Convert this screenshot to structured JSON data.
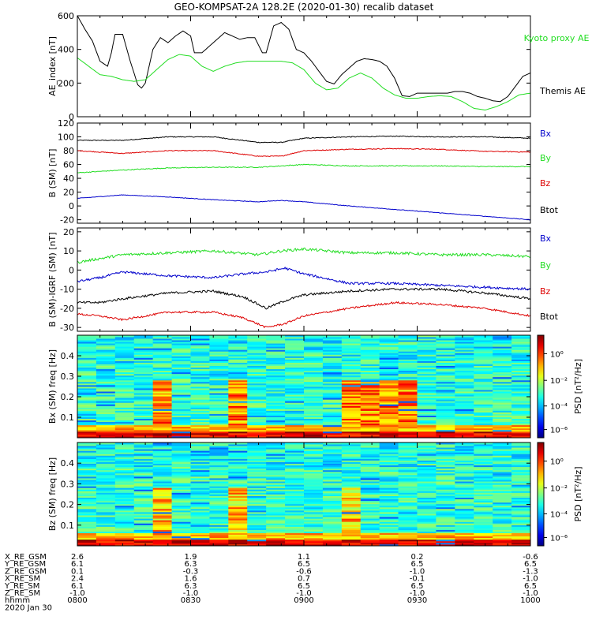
{
  "title": "GEO-KOMPSAT-2A 128.2E (2020-01-30) recalib dataset",
  "colors": {
    "kyoto": "#22dd22",
    "themis": "#000000",
    "bx": "#0000cc",
    "by": "#22dd22",
    "bz": "#dd0000",
    "btot": "#000000"
  },
  "chart_data": [
    {
      "type": "line",
      "ylabel": "AE_index [nT]",
      "ylim": [
        0,
        600
      ],
      "yticks": [
        "0",
        "200",
        "400",
        "600"
      ],
      "legend": [
        "Kyoto proxy AE",
        "Themis AE"
      ],
      "series": [
        {
          "name": "Themis AE",
          "color": "#000000",
          "x": [
            0,
            2,
            4,
            6,
            8,
            9,
            10,
            12,
            14,
            16,
            17,
            18,
            19,
            20,
            22,
            24,
            26,
            28,
            30,
            31,
            33,
            35,
            37,
            39,
            41,
            43,
            45,
            47,
            49,
            50,
            52,
            54,
            56,
            58,
            60,
            62,
            64,
            66,
            68,
            70,
            72,
            74,
            76,
            78,
            80,
            82,
            84,
            86,
            88,
            90,
            92,
            94,
            96,
            98,
            100,
            102,
            104,
            106,
            108,
            110,
            112,
            114,
            116,
            118,
            120
          ],
          "y": [
            600,
            520,
            450,
            330,
            300,
            380,
            490,
            490,
            330,
            190,
            170,
            200,
            300,
            400,
            470,
            440,
            480,
            510,
            480,
            380,
            380,
            420,
            460,
            500,
            480,
            460,
            470,
            470,
            380,
            380,
            540,
            560,
            520,
            400,
            380,
            330,
            270,
            210,
            195,
            250,
            290,
            330,
            345,
            340,
            330,
            300,
            230,
            125,
            120,
            140,
            140,
            140,
            140,
            140,
            150,
            150,
            140,
            120,
            110,
            95,
            90,
            120,
            180,
            240,
            260
          ]
        },
        {
          "name": "Kyoto proxy AE",
          "color": "#22dd22",
          "x": [
            0,
            3,
            6,
            9,
            12,
            15,
            18,
            21,
            24,
            27,
            30,
            33,
            36,
            39,
            42,
            45,
            48,
            51,
            54,
            57,
            60,
            63,
            66,
            69,
            72,
            75,
            78,
            81,
            84,
            87,
            90,
            93,
            96,
            99,
            102,
            105,
            108,
            111,
            114,
            117,
            120
          ],
          "y": [
            350,
            300,
            250,
            240,
            220,
            210,
            220,
            280,
            340,
            370,
            360,
            300,
            270,
            300,
            320,
            330,
            330,
            330,
            330,
            320,
            280,
            200,
            160,
            170,
            230,
            260,
            230,
            170,
            130,
            110,
            110,
            120,
            125,
            120,
            90,
            50,
            40,
            60,
            90,
            130,
            140
          ]
        }
      ]
    },
    {
      "type": "line",
      "ylabel": "B (SM) [nT]",
      "ylim": [
        -25,
        120
      ],
      "yticks": [
        "-20",
        "0",
        "20",
        "40",
        "60",
        "80",
        "100",
        "120"
      ],
      "legend": [
        "Bx",
        "By",
        "Bz",
        "Btot"
      ],
      "series": [
        {
          "name": "Btot",
          "color": "#000000",
          "x": [
            0,
            12,
            24,
            36,
            48,
            54,
            60,
            72,
            84,
            96,
            108,
            120
          ],
          "y": [
            95,
            95,
            100,
            100,
            92,
            92,
            98,
            100,
            101,
            100,
            100,
            98
          ]
        },
        {
          "name": "Bz",
          "color": "#dd0000",
          "x": [
            0,
            12,
            24,
            36,
            48,
            54,
            60,
            72,
            84,
            96,
            108,
            120
          ],
          "y": [
            80,
            76,
            80,
            80,
            72,
            72,
            80,
            82,
            83,
            82,
            79,
            78
          ]
        },
        {
          "name": "By",
          "color": "#22dd22",
          "x": [
            0,
            12,
            24,
            36,
            48,
            54,
            60,
            72,
            84,
            96,
            108,
            120
          ],
          "y": [
            48,
            52,
            55,
            56,
            56,
            58,
            60,
            58,
            58,
            58,
            57,
            57
          ]
        },
        {
          "name": "Bx",
          "color": "#0000cc",
          "x": [
            0,
            12,
            24,
            36,
            48,
            54,
            60,
            72,
            84,
            96,
            108,
            120
          ],
          "y": [
            11,
            16,
            13,
            9,
            6,
            8,
            6,
            0,
            -5,
            -10,
            -15,
            -20
          ]
        }
      ]
    },
    {
      "type": "line",
      "ylabel": "B (SM)-IGRF (SM) [nT]",
      "ylim": [
        -32,
        22
      ],
      "yticks": [
        "-30",
        "-20",
        "-10",
        "0",
        "10",
        "20"
      ],
      "legend": [
        "Bx",
        "By",
        "Bz",
        "Btot"
      ],
      "series": [
        {
          "name": "By",
          "color": "#22dd22",
          "x": [
            0,
            6,
            12,
            24,
            36,
            48,
            54,
            60,
            72,
            84,
            96,
            108,
            120
          ],
          "y": [
            4,
            6,
            8,
            9,
            10,
            8,
            10,
            11,
            9,
            9,
            8,
            8,
            7
          ]
        },
        {
          "name": "Bx",
          "color": "#0000cc",
          "x": [
            0,
            6,
            12,
            24,
            36,
            44,
            50,
            55,
            60,
            72,
            84,
            96,
            108,
            120
          ],
          "y": [
            -6,
            -4,
            -1,
            -3,
            -4,
            -2,
            -1,
            1,
            -2,
            -7,
            -7,
            -8,
            -9,
            -10
          ]
        },
        {
          "name": "Btot",
          "color": "#000000",
          "x": [
            0,
            6,
            12,
            24,
            36,
            44,
            50,
            55,
            60,
            72,
            84,
            96,
            108,
            120
          ],
          "y": [
            -17,
            -17,
            -15,
            -12,
            -11,
            -14,
            -20,
            -16,
            -13,
            -11,
            -10,
            -10,
            -12,
            -15
          ]
        },
        {
          "name": "Bz",
          "color": "#dd0000",
          "x": [
            0,
            6,
            12,
            24,
            36,
            44,
            50,
            55,
            60,
            72,
            84,
            96,
            108,
            120
          ],
          "y": [
            -23,
            -24,
            -26,
            -22,
            -22,
            -25,
            -30,
            -28,
            -24,
            -20,
            -17,
            -18,
            -20,
            -24
          ]
        }
      ]
    },
    {
      "type": "heatmap",
      "ylabel": "Bx (SM) freq [Hz]",
      "ylim": [
        0,
        0.5
      ],
      "yticks": [
        "0.1",
        "0.2",
        "0.3",
        "0.4"
      ],
      "colorbar_label": "PSD [nT²/Hz]",
      "colorbar_ticks": [
        "10⁰",
        "10⁻²",
        "10⁻⁴",
        "10⁻⁶"
      ],
      "hot_columns": [
        4,
        8,
        14,
        15,
        16,
        17
      ],
      "hot_value": 0.6
    },
    {
      "type": "heatmap",
      "ylabel": "Bz (SM) freq [Hz]",
      "ylim": [
        0,
        0.5
      ],
      "yticks": [
        "0.1",
        "0.2",
        "0.3",
        "0.4"
      ],
      "colorbar_label": "PSD [nT²/Hz]",
      "colorbar_ticks": [
        "10⁰",
        "10⁻²",
        "10⁻⁴",
        "10⁻⁶"
      ],
      "hot_columns": [
        4,
        8,
        14
      ],
      "hot_value": 0.52
    }
  ],
  "ephemeris": {
    "labels": [
      "X_RE_GSM",
      "Y_RE_GSM",
      "Z_RE_GSM",
      "X_RE_SM",
      "Y_RE_SM",
      "Z_RE_SM",
      "hhmm",
      "2020 Jan 30"
    ],
    "columns": [
      [
        "2.6",
        "6.1",
        "0.1",
        "2.4",
        "6.1",
        "-1.0",
        "0800"
      ],
      [
        "1.9",
        "6.3",
        "-0.3",
        "1.6",
        "6.3",
        "-1.0",
        "0830"
      ],
      [
        "1.1",
        "6.5",
        "-0.6",
        "0.7",
        "6.5",
        "-1.0",
        "0900"
      ],
      [
        "0.2",
        "6.5",
        "-1.0",
        "-0.1",
        "6.5",
        "-1.0",
        "0930"
      ],
      [
        "-0.6",
        "6.5",
        "-1.3",
        "-1.0",
        "6.5",
        "-1.0",
        "1000"
      ]
    ]
  }
}
